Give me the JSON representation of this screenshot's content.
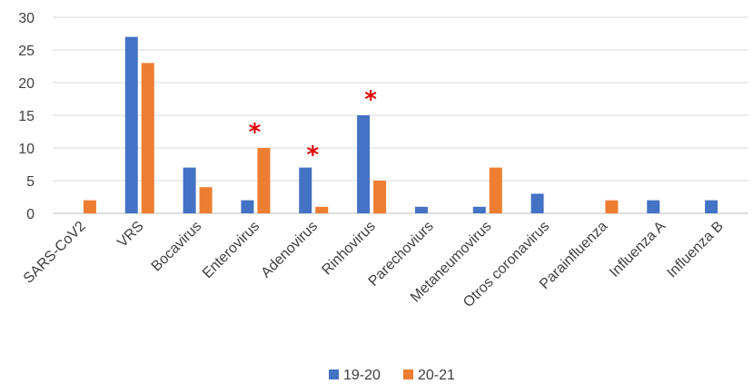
{
  "chart_data": {
    "type": "bar",
    "categories": [
      "SARS-CoV2",
      "VRS",
      "Bocavirus",
      "Enterovirus",
      "Adenovirus",
      "Rinhovirus",
      "Parechoviurs",
      "Metaneumovirus",
      "Otros coronavirus",
      "Parainfluenza",
      "Influenza A",
      "Influenza B"
    ],
    "series": [
      {
        "name": "19-20",
        "color": "#4472C4",
        "values": [
          0,
          27,
          7,
          2,
          7,
          15,
          1,
          1,
          3,
          0,
          2,
          2
        ]
      },
      {
        "name": "20-21",
        "color": "#ED7D31",
        "values": [
          2,
          23,
          4,
          10,
          1,
          5,
          0,
          7,
          0,
          2,
          0,
          0
        ]
      }
    ],
    "ylim": [
      0,
      30
    ],
    "yticks": [
      0,
      5,
      10,
      15,
      20,
      25,
      30
    ],
    "grid": true,
    "legend_position": "bottom",
    "annotations": [
      {
        "category": "Enterovirus",
        "text": "*",
        "color": "#E00000",
        "y": 13.5
      },
      {
        "category": "Adenovirus",
        "text": "*",
        "color": "#E00000",
        "y": 10
      },
      {
        "category": "Rinhovirus",
        "text": "*",
        "color": "#E00000",
        "y": 18.5
      }
    ]
  }
}
